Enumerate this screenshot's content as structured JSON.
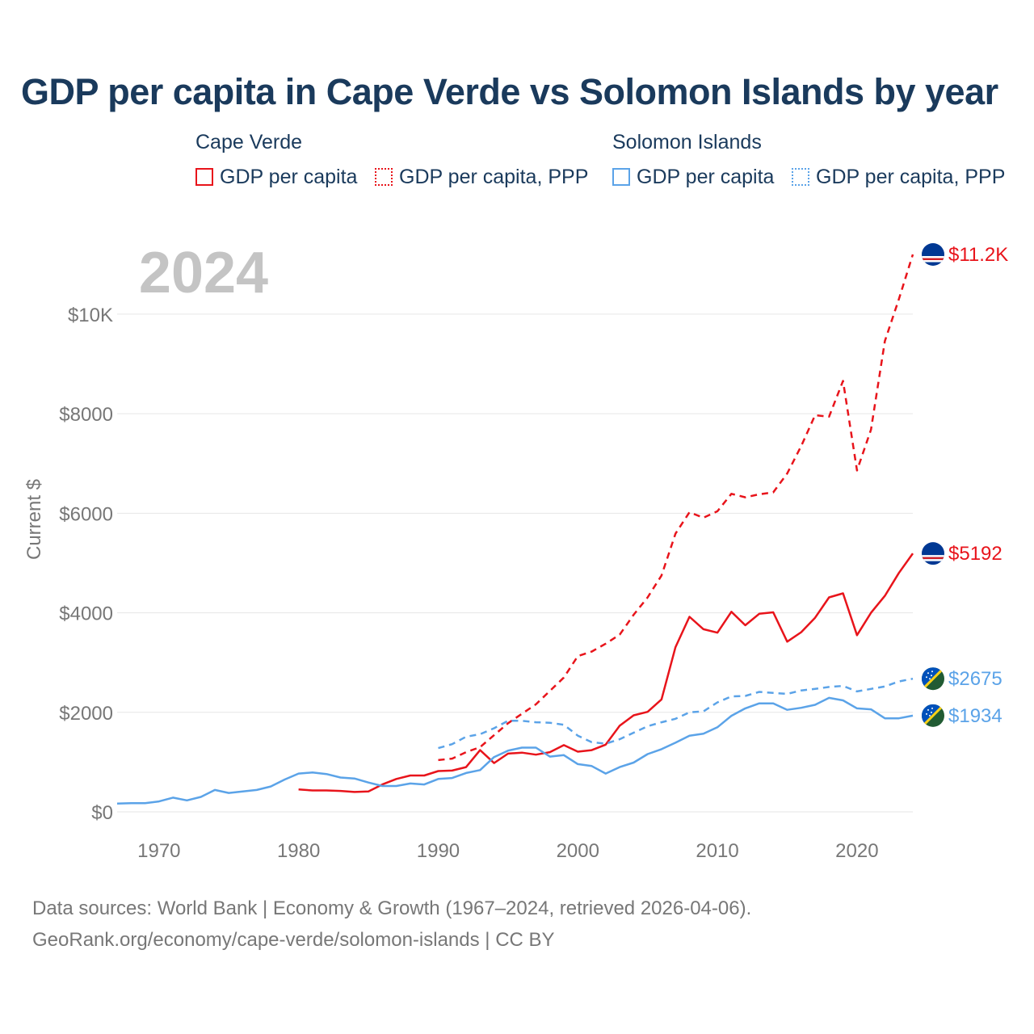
{
  "title": "GDP per capita in Cape Verde vs Solomon Islands by year",
  "legend": {
    "groups": [
      {
        "name": "Cape Verde",
        "color": "#e8141b",
        "items": [
          {
            "label": "GDP per capita",
            "style": "solid"
          },
          {
            "label": "GDP per capita, PPP",
            "style": "dotted"
          }
        ]
      },
      {
        "name": "Solomon Islands",
        "color": "#5ba3e8",
        "items": [
          {
            "label": "GDP per capita",
            "style": "solid"
          },
          {
            "label": "GDP per capita, PPP",
            "style": "dotted"
          }
        ]
      }
    ]
  },
  "year_watermark": "2024",
  "footer": {
    "line1": "Data sources: World Bank | Economy & Growth (1967–2024, retrieved 2026-04-06).",
    "line2": "GeoRank.org/economy/cape-verde/solomon-islands | CC BY"
  },
  "chart_data": {
    "type": "line",
    "title": "GDP per capita in Cape Verde vs Solomon Islands by year",
    "xlabel": "",
    "ylabel": "Current $",
    "xlim": [
      1967,
      2024
    ],
    "ylim": [
      0,
      11200
    ],
    "xticks": [
      1970,
      1980,
      1990,
      2000,
      2010,
      2020
    ],
    "yticks": [
      0,
      2000,
      4000,
      6000,
      8000,
      10000
    ],
    "ytick_labels": [
      "$0",
      "$2000",
      "$4000",
      "$6000",
      "$8000",
      "$10K"
    ],
    "grid": true,
    "series": [
      {
        "name": "Cape Verde – GDP per capita, PPP",
        "country": "Cape Verde",
        "color": "#e8141b",
        "dashed": true,
        "end_label": "$11.2K",
        "x": [
          1990,
          1991,
          1992,
          1993,
          1994,
          1995,
          1996,
          1997,
          1998,
          1999,
          2000,
          2001,
          2002,
          2003,
          2004,
          2005,
          2006,
          2007,
          2008,
          2009,
          2010,
          2011,
          2012,
          2013,
          2014,
          2015,
          2016,
          2017,
          2018,
          2019,
          2020,
          2021,
          2022,
          2023,
          2024
        ],
        "values": [
          1040,
          1070,
          1200,
          1300,
          1540,
          1780,
          1970,
          2160,
          2430,
          2700,
          3130,
          3220,
          3380,
          3560,
          3960,
          4310,
          4750,
          5590,
          6020,
          5910,
          6040,
          6390,
          6320,
          6380,
          6420,
          6800,
          7350,
          7970,
          7940,
          8660,
          6860,
          7680,
          9460,
          10300,
          11200
        ]
      },
      {
        "name": "Cape Verde – GDP per capita",
        "country": "Cape Verde",
        "color": "#e8141b",
        "dashed": false,
        "end_label": "$5192",
        "x": [
          1980,
          1981,
          1982,
          1983,
          1984,
          1985,
          1986,
          1987,
          1988,
          1989,
          1990,
          1991,
          1992,
          1993,
          1994,
          1995,
          1996,
          1997,
          1998,
          1999,
          2000,
          2001,
          2002,
          2003,
          2004,
          2005,
          2006,
          2007,
          2008,
          2009,
          2010,
          2011,
          2012,
          2013,
          2014,
          2015,
          2016,
          2017,
          2018,
          2019,
          2020,
          2021,
          2022,
          2023,
          2024
        ],
        "values": [
          450,
          430,
          430,
          420,
          400,
          410,
          550,
          660,
          730,
          730,
          820,
          830,
          900,
          1240,
          980,
          1170,
          1190,
          1150,
          1200,
          1340,
          1210,
          1240,
          1350,
          1730,
          1940,
          2010,
          2260,
          3310,
          3920,
          3670,
          3600,
          4020,
          3750,
          3980,
          4010,
          3420,
          3610,
          3900,
          4310,
          4390,
          3550,
          4000,
          4340,
          4800,
          5192
        ]
      },
      {
        "name": "Solomon Islands – GDP per capita, PPP",
        "country": "Solomon Islands",
        "color": "#5ba3e8",
        "dashed": true,
        "end_label": "$2675",
        "x": [
          1990,
          1991,
          1992,
          1993,
          1994,
          1995,
          1996,
          1997,
          1998,
          1999,
          2000,
          2001,
          2002,
          2003,
          2004,
          2005,
          2006,
          2007,
          2008,
          2009,
          2010,
          2011,
          2012,
          2013,
          2014,
          2015,
          2016,
          2017,
          2018,
          2019,
          2020,
          2021,
          2022,
          2023,
          2024
        ],
        "values": [
          1280,
          1360,
          1510,
          1560,
          1680,
          1830,
          1830,
          1800,
          1790,
          1750,
          1530,
          1400,
          1370,
          1460,
          1590,
          1720,
          1800,
          1870,
          2000,
          2020,
          2200,
          2320,
          2330,
          2410,
          2390,
          2370,
          2440,
          2470,
          2510,
          2530,
          2420,
          2470,
          2520,
          2620,
          2675
        ]
      },
      {
        "name": "Solomon Islands – GDP per capita",
        "country": "Solomon Islands",
        "color": "#5ba3e8",
        "dashed": false,
        "end_label": "$1934",
        "x": [
          1967,
          1968,
          1969,
          1970,
          1971,
          1972,
          1973,
          1974,
          1975,
          1976,
          1977,
          1978,
          1979,
          1980,
          1981,
          1982,
          1983,
          1984,
          1985,
          1986,
          1987,
          1988,
          1989,
          1990,
          1991,
          1992,
          1993,
          1994,
          1995,
          1996,
          1997,
          1998,
          1999,
          2000,
          2001,
          2002,
          2003,
          2004,
          2005,
          2006,
          2007,
          2008,
          2009,
          2010,
          2011,
          2012,
          2013,
          2014,
          2015,
          2016,
          2017,
          2018,
          2019,
          2020,
          2021,
          2022,
          2023,
          2024
        ],
        "values": [
          165,
          175,
          175,
          210,
          285,
          230,
          300,
          440,
          380,
          410,
          440,
          510,
          650,
          770,
          790,
          760,
          690,
          670,
          590,
          520,
          520,
          570,
          550,
          660,
          680,
          780,
          840,
          1100,
          1230,
          1290,
          1290,
          1110,
          1140,
          960,
          920,
          770,
          900,
          990,
          1160,
          1260,
          1390,
          1530,
          1570,
          1700,
          1930,
          2080,
          2180,
          2180,
          2050,
          2090,
          2150,
          2290,
          2240,
          2080,
          2060,
          1880,
          1880,
          1934
        ]
      }
    ]
  }
}
